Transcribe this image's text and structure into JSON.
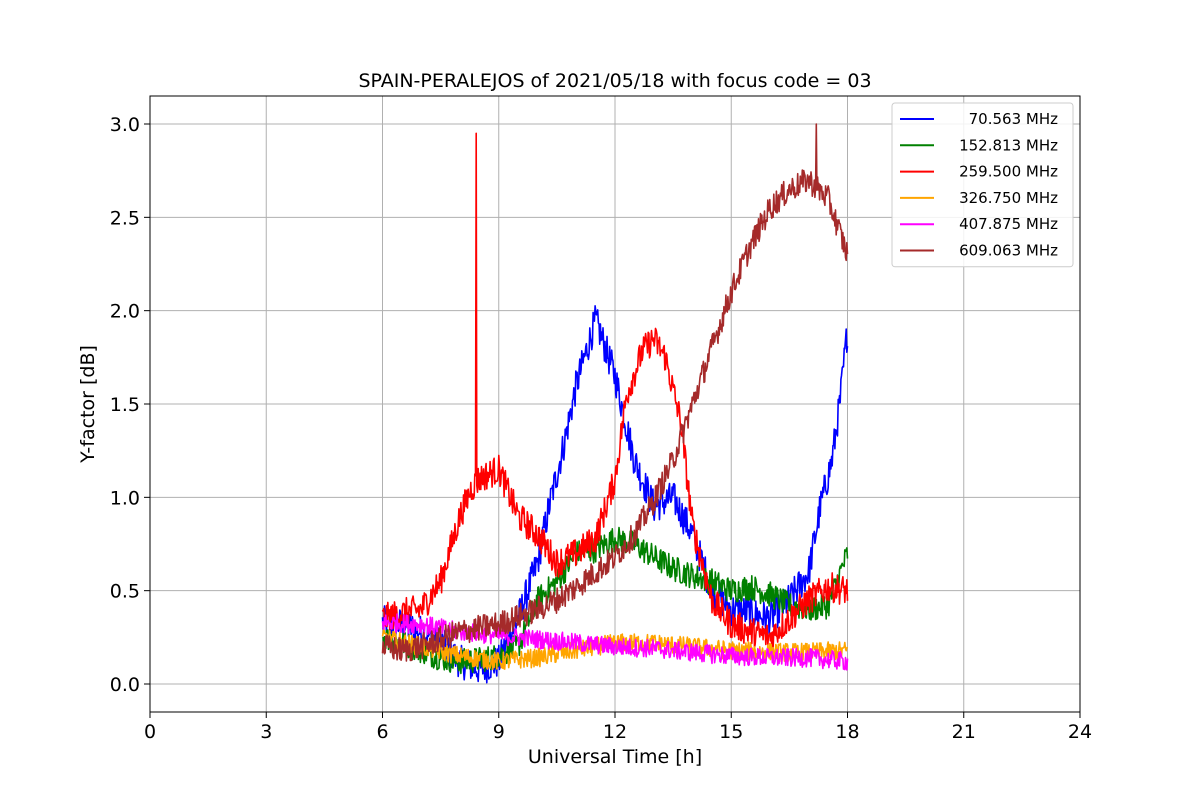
{
  "chart_data": {
    "type": "line",
    "title": "SPAIN-PERALEJOS of 2021/05/18 with focus code = 03",
    "xlabel": "Universal Time [h]",
    "ylabel": "Y-factor [dB]",
    "xlim": [
      0,
      24
    ],
    "ylim": [
      -0.15,
      3.15
    ],
    "xticks": [
      0,
      3,
      6,
      9,
      12,
      15,
      18,
      21,
      24
    ],
    "xtick_labels": [
      "0",
      "3",
      "6",
      "9",
      "12",
      "15",
      "18",
      "21",
      "24"
    ],
    "yticks": [
      0.0,
      0.5,
      1.0,
      1.5,
      2.0,
      2.5,
      3.0
    ],
    "ytick_labels": [
      "0.0",
      "0.5",
      "1.0",
      "1.5",
      "2.0",
      "2.5",
      "3.0"
    ],
    "grid": true,
    "legend_position": "top-right",
    "series": [
      {
        "name": "70.563 MHz",
        "color": "#0000ff",
        "noise": 0.09,
        "x": [
          6.0,
          6.5,
          7.0,
          7.5,
          8.0,
          8.5,
          9.0,
          9.5,
          10.0,
          10.3,
          10.7,
          11.0,
          11.5,
          12.0,
          12.5,
          13.0,
          13.5,
          14.0,
          14.5,
          15.0,
          15.5,
          16.0,
          16.5,
          17.0,
          17.3,
          17.6,
          17.8,
          18.0
        ],
        "y": [
          0.33,
          0.32,
          0.28,
          0.22,
          0.12,
          0.08,
          0.12,
          0.35,
          0.65,
          0.95,
          1.3,
          1.6,
          1.95,
          1.65,
          1.2,
          0.95,
          1.0,
          0.8,
          0.5,
          0.4,
          0.38,
          0.35,
          0.45,
          0.6,
          0.95,
          1.2,
          1.5,
          1.9
        ]
      },
      {
        "name": "152.813 MHz",
        "color": "#008000",
        "noise": 0.07,
        "x": [
          6.0,
          6.5,
          7.0,
          7.5,
          8.0,
          8.5,
          9.0,
          9.5,
          10.0,
          10.5,
          11.0,
          11.5,
          12.0,
          12.5,
          13.0,
          13.5,
          14.0,
          14.5,
          15.0,
          15.5,
          16.0,
          16.5,
          17.0,
          17.5,
          18.0
        ],
        "y": [
          0.25,
          0.22,
          0.18,
          0.14,
          0.12,
          0.13,
          0.15,
          0.2,
          0.45,
          0.55,
          0.7,
          0.72,
          0.78,
          0.75,
          0.68,
          0.62,
          0.58,
          0.55,
          0.5,
          0.52,
          0.48,
          0.42,
          0.4,
          0.42,
          0.7
        ]
      },
      {
        "name": "259.500 MHz",
        "color": "#ff0000",
        "noise": 0.08,
        "x": [
          6.0,
          6.5,
          7.0,
          7.5,
          8.0,
          8.3,
          8.5,
          9.0,
          9.5,
          10.0,
          10.5,
          11.0,
          11.5,
          12.0,
          12.3,
          12.7,
          13.0,
          13.3,
          13.7,
          14.0,
          14.5,
          15.0,
          15.5,
          16.0,
          16.5,
          17.0,
          17.5,
          18.0
        ],
        "y": [
          0.35,
          0.38,
          0.4,
          0.55,
          0.9,
          1.05,
          1.1,
          1.15,
          0.9,
          0.8,
          0.65,
          0.7,
          0.78,
          1.1,
          1.55,
          1.78,
          1.85,
          1.75,
          1.4,
          0.85,
          0.45,
          0.32,
          0.28,
          0.25,
          0.35,
          0.45,
          0.52,
          0.5
        ]
      },
      {
        "name": "326.750 MHz",
        "color": "#ffa500",
        "noise": 0.05,
        "x": [
          6.0,
          7.0,
          8.0,
          9.0,
          10.0,
          11.0,
          12.0,
          13.0,
          14.0,
          15.0,
          16.0,
          17.0,
          18.0
        ],
        "y": [
          0.25,
          0.2,
          0.15,
          0.12,
          0.14,
          0.18,
          0.22,
          0.22,
          0.2,
          0.18,
          0.17,
          0.17,
          0.18
        ]
      },
      {
        "name": "407.875 MHz",
        "color": "#ff00ff",
        "noise": 0.05,
        "x": [
          6.0,
          7.0,
          8.0,
          9.0,
          10.0,
          11.0,
          12.0,
          13.0,
          14.0,
          15.0,
          16.0,
          17.0,
          18.0
        ],
        "y": [
          0.33,
          0.32,
          0.28,
          0.26,
          0.24,
          0.22,
          0.2,
          0.19,
          0.17,
          0.15,
          0.14,
          0.14,
          0.12
        ]
      },
      {
        "name": "609.063 MHz",
        "color": "#a52a2a",
        "noise": 0.07,
        "x": [
          6.0,
          6.5,
          7.0,
          7.5,
          8.0,
          8.5,
          9.0,
          9.5,
          10.0,
          10.5,
          11.0,
          11.5,
          12.0,
          12.5,
          13.0,
          13.5,
          14.0,
          14.5,
          15.0,
          15.5,
          16.0,
          16.5,
          17.0,
          17.5,
          18.0
        ],
        "y": [
          0.2,
          0.18,
          0.2,
          0.24,
          0.28,
          0.3,
          0.32,
          0.36,
          0.4,
          0.45,
          0.52,
          0.6,
          0.68,
          0.8,
          0.98,
          1.2,
          1.5,
          1.8,
          2.1,
          2.35,
          2.55,
          2.65,
          2.7,
          2.6,
          2.3
        ]
      }
    ],
    "spikes": [
      {
        "series": "259.500 MHz",
        "x": 8.42,
        "y": 2.95
      },
      {
        "series": "609.063 MHz",
        "x": 17.2,
        "y": 3.0
      }
    ]
  }
}
